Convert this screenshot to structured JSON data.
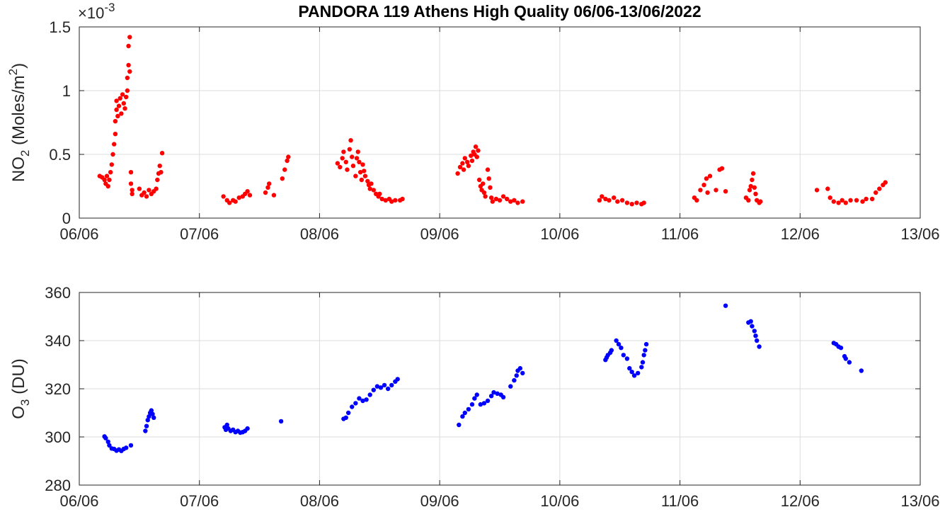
{
  "title": "PANDORA 119 Athens High Quality 06/06-13/06/2022",
  "chart_data": [
    {
      "id": "no2",
      "type": "scatter",
      "ylabel": {
        "base": "NO",
        "sub": "2",
        "mid": " (Moles/m",
        "sup": "2",
        "end": ")"
      },
      "exponent": {
        "prefix": "×10",
        "sup": "-3"
      },
      "x_tick_labels": [
        "06/06",
        "07/06",
        "08/06",
        "09/06",
        "10/06",
        "11/06",
        "12/06",
        "13/06"
      ],
      "xlim": [
        0,
        7
      ],
      "ylim": [
        0,
        1.5
      ],
      "y_ticks": [
        0,
        0.5,
        1,
        1.5
      ],
      "y_tick_labels": [
        "0",
        "0.5",
        "1",
        "1.5"
      ],
      "grid": true,
      "color": "#ff0000",
      "x_units": "days since 06/06/2022",
      "points": [
        [
          0.17,
          0.33
        ],
        [
          0.19,
          0.32
        ],
        [
          0.21,
          0.3
        ],
        [
          0.22,
          0.27
        ],
        [
          0.23,
          0.33
        ],
        [
          0.24,
          0.25
        ],
        [
          0.25,
          0.3
        ],
        [
          0.26,
          0.36
        ],
        [
          0.27,
          0.42
        ],
        [
          0.28,
          0.5
        ],
        [
          0.29,
          0.58
        ],
        [
          0.3,
          0.66
        ],
        [
          0.3,
          0.76
        ],
        [
          0.31,
          0.85
        ],
        [
          0.31,
          0.92
        ],
        [
          0.32,
          0.8
        ],
        [
          0.33,
          0.88
        ],
        [
          0.34,
          0.94
        ],
        [
          0.35,
          0.82
        ],
        [
          0.36,
          0.97
        ],
        [
          0.37,
          0.9
        ],
        [
          0.38,
          0.86
        ],
        [
          0.39,
          0.95
        ],
        [
          0.4,
          1.0
        ],
        [
          0.4,
          1.1
        ],
        [
          0.41,
          1.2
        ],
        [
          0.41,
          1.35
        ],
        [
          0.42,
          1.42
        ],
        [
          0.42,
          1.15
        ],
        [
          0.43,
          0.36
        ],
        [
          0.43,
          0.27
        ],
        [
          0.44,
          0.22
        ],
        [
          0.44,
          0.19
        ],
        [
          0.5,
          0.23
        ],
        [
          0.52,
          0.18
        ],
        [
          0.54,
          0.2
        ],
        [
          0.56,
          0.17
        ],
        [
          0.58,
          0.22
        ],
        [
          0.6,
          0.19
        ],
        [
          0.62,
          0.21
        ],
        [
          0.64,
          0.23
        ],
        [
          0.65,
          0.3
        ],
        [
          0.66,
          0.35
        ],
        [
          0.67,
          0.41
        ],
        [
          0.68,
          0.36
        ],
        [
          0.69,
          0.51
        ],
        [
          1.2,
          0.17
        ],
        [
          1.23,
          0.14
        ],
        [
          1.25,
          0.12
        ],
        [
          1.28,
          0.14
        ],
        [
          1.3,
          0.13
        ],
        [
          1.33,
          0.16
        ],
        [
          1.36,
          0.17
        ],
        [
          1.38,
          0.19
        ],
        [
          1.4,
          0.21
        ],
        [
          1.42,
          0.18
        ],
        [
          1.55,
          0.2
        ],
        [
          1.57,
          0.24
        ],
        [
          1.58,
          0.27
        ],
        [
          1.62,
          0.18
        ],
        [
          1.69,
          0.31
        ],
        [
          1.71,
          0.38
        ],
        [
          1.73,
          0.45
        ],
        [
          1.74,
          0.48
        ],
        [
          2.15,
          0.43
        ],
        [
          2.17,
          0.4
        ],
        [
          2.19,
          0.47
        ],
        [
          2.2,
          0.52
        ],
        [
          2.22,
          0.44
        ],
        [
          2.23,
          0.38
        ],
        [
          2.25,
          0.54
        ],
        [
          2.26,
          0.61
        ],
        [
          2.27,
          0.48
        ],
        [
          2.28,
          0.41
        ],
        [
          2.3,
          0.33
        ],
        [
          2.31,
          0.47
        ],
        [
          2.32,
          0.52
        ],
        [
          2.33,
          0.44
        ],
        [
          2.34,
          0.36
        ],
        [
          2.35,
          0.3
        ],
        [
          2.36,
          0.42
        ],
        [
          2.37,
          0.37
        ],
        [
          2.38,
          0.33
        ],
        [
          2.4,
          0.29
        ],
        [
          2.41,
          0.26
        ],
        [
          2.42,
          0.23
        ],
        [
          2.43,
          0.27
        ],
        [
          2.45,
          0.22
        ],
        [
          2.47,
          0.19
        ],
        [
          2.49,
          0.17
        ],
        [
          2.5,
          0.19
        ],
        [
          2.52,
          0.15
        ],
        [
          2.55,
          0.14
        ],
        [
          2.58,
          0.15
        ],
        [
          2.6,
          0.13
        ],
        [
          2.63,
          0.14
        ],
        [
          2.67,
          0.14
        ],
        [
          2.69,
          0.15
        ],
        [
          3.15,
          0.35
        ],
        [
          3.17,
          0.4
        ],
        [
          3.19,
          0.43
        ],
        [
          3.2,
          0.38
        ],
        [
          3.21,
          0.47
        ],
        [
          3.23,
          0.44
        ],
        [
          3.24,
          0.41
        ],
        [
          3.26,
          0.49
        ],
        [
          3.27,
          0.45
        ],
        [
          3.28,
          0.52
        ],
        [
          3.29,
          0.5
        ],
        [
          3.3,
          0.56
        ],
        [
          3.31,
          0.48
        ],
        [
          3.32,
          0.53
        ],
        [
          3.33,
          0.3
        ],
        [
          3.34,
          0.25
        ],
        [
          3.35,
          0.22
        ],
        [
          3.36,
          0.27
        ],
        [
          3.37,
          0.2
        ],
        [
          3.38,
          0.17
        ],
        [
          3.4,
          0.38
        ],
        [
          3.41,
          0.31
        ],
        [
          3.42,
          0.24
        ],
        [
          3.43,
          0.16
        ],
        [
          3.44,
          0.13
        ],
        [
          3.47,
          0.15
        ],
        [
          3.5,
          0.14
        ],
        [
          3.53,
          0.17
        ],
        [
          3.56,
          0.15
        ],
        [
          3.59,
          0.13
        ],
        [
          3.62,
          0.14
        ],
        [
          3.65,
          0.12
        ],
        [
          3.69,
          0.13
        ],
        [
          4.33,
          0.14
        ],
        [
          4.35,
          0.17
        ],
        [
          4.38,
          0.15
        ],
        [
          4.41,
          0.14
        ],
        [
          4.45,
          0.16
        ],
        [
          4.48,
          0.13
        ],
        [
          4.52,
          0.14
        ],
        [
          4.56,
          0.12
        ],
        [
          4.6,
          0.11
        ],
        [
          4.64,
          0.12
        ],
        [
          4.68,
          0.11
        ],
        [
          4.7,
          0.12
        ],
        [
          5.12,
          0.16
        ],
        [
          5.14,
          0.14
        ],
        [
          5.17,
          0.22
        ],
        [
          5.2,
          0.26
        ],
        [
          5.22,
          0.31
        ],
        [
          5.23,
          0.2
        ],
        [
          5.25,
          0.33
        ],
        [
          5.3,
          0.22
        ],
        [
          5.33,
          0.38
        ],
        [
          5.35,
          0.39
        ],
        [
          5.38,
          0.21
        ],
        [
          5.55,
          0.16
        ],
        [
          5.57,
          0.14
        ],
        [
          5.58,
          0.22
        ],
        [
          5.59,
          0.25
        ],
        [
          5.6,
          0.3
        ],
        [
          5.61,
          0.35
        ],
        [
          5.62,
          0.24
        ],
        [
          5.63,
          0.19
        ],
        [
          5.64,
          0.14
        ],
        [
          5.66,
          0.12
        ],
        [
          5.67,
          0.13
        ],
        [
          6.14,
          0.22
        ],
        [
          6.23,
          0.23
        ],
        [
          6.25,
          0.16
        ],
        [
          6.28,
          0.13
        ],
        [
          6.32,
          0.12
        ],
        [
          6.35,
          0.14
        ],
        [
          6.38,
          0.12
        ],
        [
          6.42,
          0.14
        ],
        [
          6.47,
          0.14
        ],
        [
          6.52,
          0.13
        ],
        [
          6.55,
          0.15
        ],
        [
          6.6,
          0.15
        ],
        [
          6.63,
          0.2
        ],
        [
          6.66,
          0.23
        ],
        [
          6.69,
          0.26
        ],
        [
          6.71,
          0.28
        ]
      ]
    },
    {
      "id": "o3",
      "type": "scatter",
      "ylabel": {
        "base": "O",
        "sub": "3",
        "mid": " (DU)",
        "sup": "",
        "end": ""
      },
      "x_tick_labels": [
        "06/06",
        "07/06",
        "08/06",
        "09/06",
        "10/06",
        "11/06",
        "12/06",
        "13/06"
      ],
      "xlim": [
        0,
        7
      ],
      "ylim": [
        280,
        360
      ],
      "y_ticks": [
        280,
        300,
        320,
        340,
        360
      ],
      "y_tick_labels": [
        "280",
        "300",
        "320",
        "340",
        "360"
      ],
      "grid": true,
      "color": "#0000ff",
      "x_units": "days since 06/06/2022",
      "points": [
        [
          0.21,
          300.2
        ],
        [
          0.22,
          299.5
        ],
        [
          0.24,
          298.0
        ],
        [
          0.25,
          296.5
        ],
        [
          0.27,
          295.2
        ],
        [
          0.29,
          295.0
        ],
        [
          0.31,
          294.3
        ],
        [
          0.33,
          294.8
        ],
        [
          0.35,
          294.2
        ],
        [
          0.37,
          295.0
        ],
        [
          0.39,
          295.5
        ],
        [
          0.43,
          296.5
        ],
        [
          0.55,
          302.5
        ],
        [
          0.56,
          304.5
        ],
        [
          0.57,
          307.0
        ],
        [
          0.58,
          308.5
        ],
        [
          0.59,
          310.0
        ],
        [
          0.6,
          311.0
        ],
        [
          0.61,
          309.5
        ],
        [
          0.62,
          308.0
        ],
        [
          1.21,
          304.0
        ],
        [
          1.22,
          303.0
        ],
        [
          1.23,
          305.0
        ],
        [
          1.24,
          303.5
        ],
        [
          1.26,
          302.5
        ],
        [
          1.28,
          303.0
        ],
        [
          1.3,
          302.0
        ],
        [
          1.32,
          302.5
        ],
        [
          1.34,
          301.8
        ],
        [
          1.36,
          302.0
        ],
        [
          1.38,
          302.5
        ],
        [
          1.4,
          303.5
        ],
        [
          1.68,
          306.5
        ],
        [
          2.2,
          307.5
        ],
        [
          2.22,
          308.0
        ],
        [
          2.24,
          310.0
        ],
        [
          2.27,
          312.5
        ],
        [
          2.3,
          314.0
        ],
        [
          2.33,
          316.0
        ],
        [
          2.36,
          315.0
        ],
        [
          2.39,
          315.5
        ],
        [
          2.42,
          317.5
        ],
        [
          2.45,
          319.5
        ],
        [
          2.48,
          321.0
        ],
        [
          2.51,
          320.5
        ],
        [
          2.54,
          321.5
        ],
        [
          2.57,
          320.0
        ],
        [
          2.6,
          321.5
        ],
        [
          2.63,
          323.0
        ],
        [
          2.65,
          324.0
        ],
        [
          3.16,
          305.0
        ],
        [
          3.19,
          308.5
        ],
        [
          3.21,
          310.0
        ],
        [
          3.24,
          311.5
        ],
        [
          3.27,
          313.5
        ],
        [
          3.29,
          316.0
        ],
        [
          3.31,
          317.5
        ],
        [
          3.34,
          313.5
        ],
        [
          3.37,
          314.0
        ],
        [
          3.4,
          315.0
        ],
        [
          3.43,
          317.0
        ],
        [
          3.45,
          318.5
        ],
        [
          3.48,
          318.0
        ],
        [
          3.51,
          317.5
        ],
        [
          3.53,
          316.5
        ],
        [
          3.59,
          321.0
        ],
        [
          3.62,
          323.5
        ],
        [
          3.64,
          325.5
        ],
        [
          3.65,
          327.5
        ],
        [
          3.67,
          328.5
        ],
        [
          3.69,
          326.5
        ],
        [
          4.38,
          332.0
        ],
        [
          4.39,
          333.0
        ],
        [
          4.4,
          334.0
        ],
        [
          4.42,
          335.0
        ],
        [
          4.43,
          336.0
        ],
        [
          4.47,
          340.0
        ],
        [
          4.49,
          338.5
        ],
        [
          4.51,
          337.0
        ],
        [
          4.53,
          334.0
        ],
        [
          4.56,
          332.5
        ],
        [
          4.58,
          328.5
        ],
        [
          4.6,
          327.0
        ],
        [
          4.62,
          325.5
        ],
        [
          4.65,
          326.5
        ],
        [
          4.68,
          329.0
        ],
        [
          4.69,
          331.0
        ],
        [
          4.7,
          334.0
        ],
        [
          4.71,
          336.0
        ],
        [
          4.72,
          338.5
        ],
        [
          5.38,
          354.5
        ],
        [
          5.57,
          347.5
        ],
        [
          5.59,
          348.0
        ],
        [
          5.6,
          346.0
        ],
        [
          5.62,
          344.0
        ],
        [
          5.63,
          342.0
        ],
        [
          5.64,
          340.0
        ],
        [
          5.66,
          337.5
        ],
        [
          6.28,
          339.0
        ],
        [
          6.3,
          338.5
        ],
        [
          6.32,
          337.5
        ],
        [
          6.34,
          337.0
        ],
        [
          6.37,
          333.5
        ],
        [
          6.38,
          332.5
        ],
        [
          6.41,
          331.0
        ],
        [
          6.51,
          327.5
        ]
      ]
    }
  ]
}
